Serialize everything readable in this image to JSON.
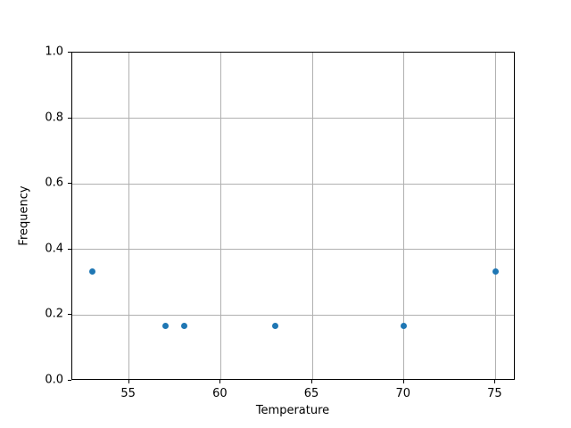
{
  "chart_data": {
    "type": "scatter",
    "title": "",
    "xlabel": "Temperature",
    "ylabel": "Frequency",
    "xlim": [
      51.9,
      76.1
    ],
    "ylim": [
      0.0,
      1.0
    ],
    "xticks": [
      55,
      60,
      65,
      70,
      75
    ],
    "xtick_labels": [
      "55",
      "60",
      "65",
      "70",
      "75"
    ],
    "yticks": [
      0.0,
      0.2,
      0.4,
      0.6,
      0.8,
      1.0
    ],
    "ytick_labels": [
      "0.0",
      "0.2",
      "0.4",
      "0.6",
      "0.8",
      "1.0"
    ],
    "grid": true,
    "legend_position": "none",
    "marker_color": "#1f77b4",
    "grid_color": "#b0b0b0",
    "spine_color": "#000000",
    "points": [
      {
        "x": 53,
        "y": 0.333
      },
      {
        "x": 57,
        "y": 0.167
      },
      {
        "x": 58,
        "y": 0.167
      },
      {
        "x": 63,
        "y": 0.167
      },
      {
        "x": 70,
        "y": 0.167
      },
      {
        "x": 75,
        "y": 0.333
      }
    ]
  }
}
